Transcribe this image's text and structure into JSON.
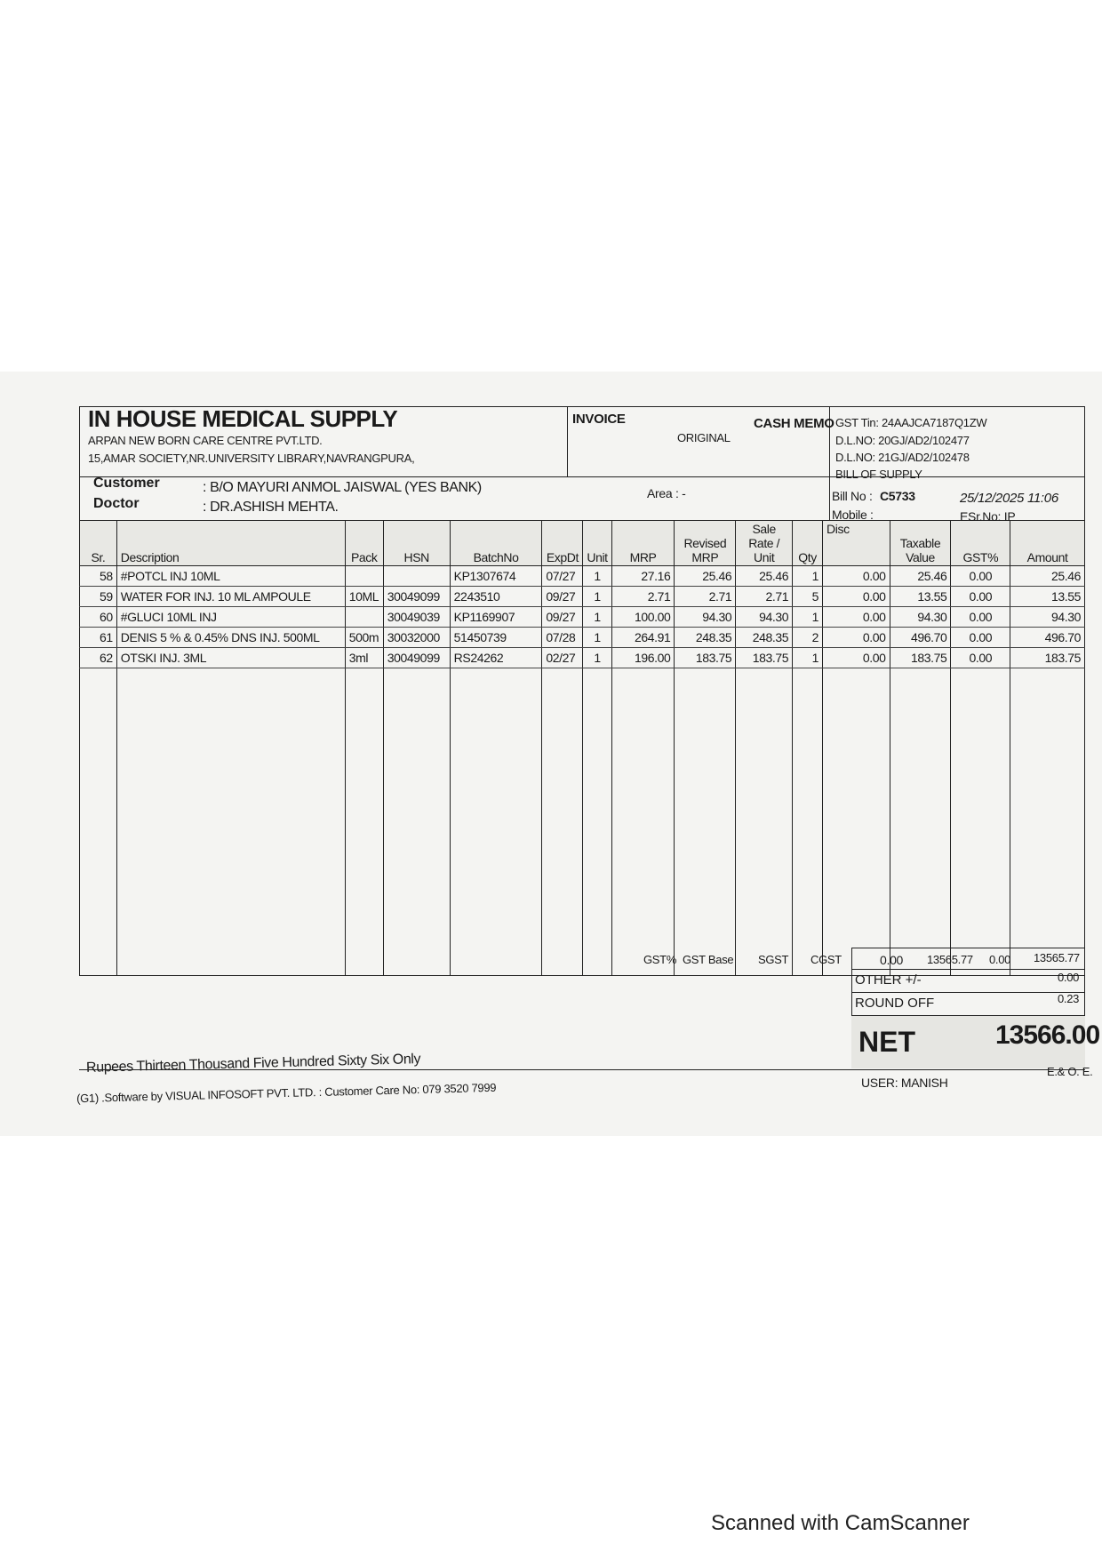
{
  "header": {
    "company": "IN HOUSE MEDICAL SUPPLY",
    "customer_org": "ARPAN NEW BORN CARE CENTRE PVT.LTD.",
    "address": "15,AMAR SOCIETY,NR.UNIVERSITY LIBRARY,NAVRANGPURA,",
    "invoice": "INVOICE",
    "original": "ORIGINAL",
    "cash_memo": "CASH MEMO",
    "gst_tin": "GST Tin: 24AAJCA7187Q1ZW",
    "dl_no_1": "D.L.NO: 20GJ/AD2/102477",
    "dl_no_2": "D.L.NO: 21GJ/AD2/102478",
    "bill_type": "BILL OF SUPPLY"
  },
  "info": {
    "customer_label": "Customer",
    "customer_value": ": B/O MAYURI ANMOL JAISWAL (YES BANK)",
    "doctor_label": "Doctor",
    "doctor_value": ": DR.ASHISH MEHTA.",
    "area": "Area : -",
    "bill_no_label": "Bill No  :",
    "bill_no": "C5733",
    "datetime": "25/12/2025 11:06",
    "mobile_label": "Mobile :",
    "esr_label": "ESr.No: IP"
  },
  "table": {
    "headers": [
      "Sr.",
      "Description",
      "Pack",
      "HSN",
      "BatchNo",
      "ExpDt",
      "Unit",
      "MRP",
      "Revised MRP",
      "Sale Rate / Unit",
      "Qty",
      "Disc",
      "Taxable Value",
      "GST%",
      "Amount"
    ],
    "rows": [
      [
        "58",
        "#POTCL INJ 10ML",
        "",
        "",
        "KP1307674",
        "07/27",
        "1",
        "27.16",
        "25.46",
        "25.46",
        "1",
        "0.00",
        "25.46",
        "0.00",
        "25.46"
      ],
      [
        "59",
        "WATER FOR INJ. 10 ML AMPOULE",
        "10ML",
        "30049099",
        "2243510",
        "09/27",
        "1",
        "2.71",
        "2.71",
        "2.71",
        "5",
        "0.00",
        "13.55",
        "0.00",
        "13.55"
      ],
      [
        "60",
        "#GLUCI 10ML INJ",
        "",
        "30049039",
        "KP1169907",
        "09/27",
        "1",
        "100.00",
        "94.30",
        "94.30",
        "1",
        "0.00",
        "94.30",
        "0.00",
        "94.30"
      ],
      [
        "61",
        "DENIS 5 % & 0.45% DNS INJ. 500ML",
        "500m",
        "30032000",
        "51450739",
        "07/28",
        "1",
        "264.91",
        "248.35",
        "248.35",
        "2",
        "0.00",
        "496.70",
        "0.00",
        "496.70"
      ],
      [
        "62",
        "OTSKI INJ. 3ML",
        "3ml",
        "30049099",
        "RS24262",
        "02/27",
        "1",
        "196.00",
        "183.75",
        "183.75",
        "1",
        "0.00",
        "183.75",
        "0.00",
        "183.75"
      ]
    ]
  },
  "summary": {
    "gst_pct": "GST%",
    "gst_base": "GST Base",
    "sgst": "SGST",
    "cgst": "CGST",
    "disc_total": "0.00",
    "taxable_total": "13565.77",
    "gst_total": "0.00",
    "amount_total": "13565.77",
    "other_label": "OTHER +/-",
    "other_value": "0.00",
    "round_off_label": "ROUND OFF",
    "round_off_value": "0.23",
    "net_label": "NET",
    "net_value": "13566.00",
    "in_words": "Rupees Thirteen Thousand Five Hundred Sixty  Six  Only",
    "user": "USER: MANISH",
    "eoe": "E.& O. E."
  },
  "footer": {
    "software": "(G1) .Software by VISUAL INFOSOFT PVT. LTD. : Customer Care No: 079 3520 7999"
  },
  "watermark": "Scanned with CamScanner"
}
